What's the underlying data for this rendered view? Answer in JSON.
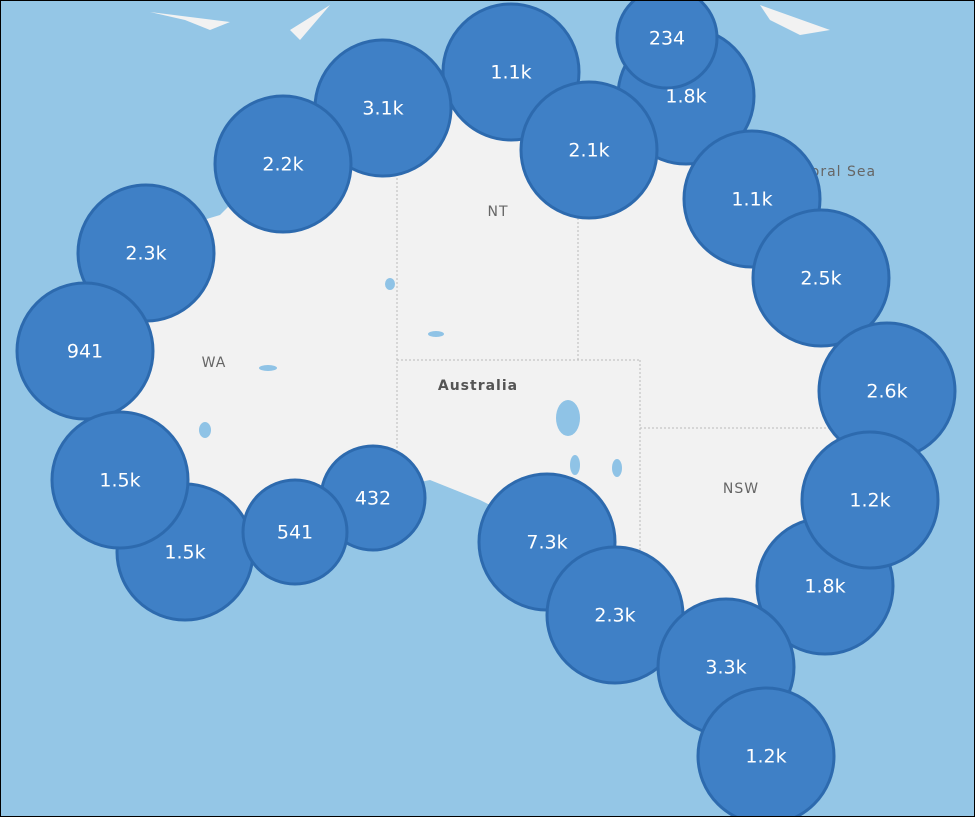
{
  "map": {
    "labels": {
      "sea": "Coral Sea",
      "country": "Australia",
      "wa": "WA",
      "nt": "NT",
      "nsw": "NSW"
    },
    "bubbles": [
      {
        "label": "1.1k"
      },
      {
        "label": "3.1k"
      },
      {
        "label": "2.2k"
      },
      {
        "label": "2.3k"
      },
      {
        "label": "1.8k"
      },
      {
        "label": "234"
      },
      {
        "label": "2.1k"
      },
      {
        "label": "1.1k"
      },
      {
        "label": "2.5k"
      },
      {
        "label": "941"
      },
      {
        "label": "2.6k"
      },
      {
        "label": "1.5k"
      },
      {
        "label": "1.5k"
      },
      {
        "label": "432"
      },
      {
        "label": "541"
      },
      {
        "label": "7.3k"
      },
      {
        "label": "2.3k"
      },
      {
        "label": "1.8k"
      },
      {
        "label": "1.2k"
      },
      {
        "label": "3.3k"
      },
      {
        "label": "1.2k"
      }
    ]
  }
}
